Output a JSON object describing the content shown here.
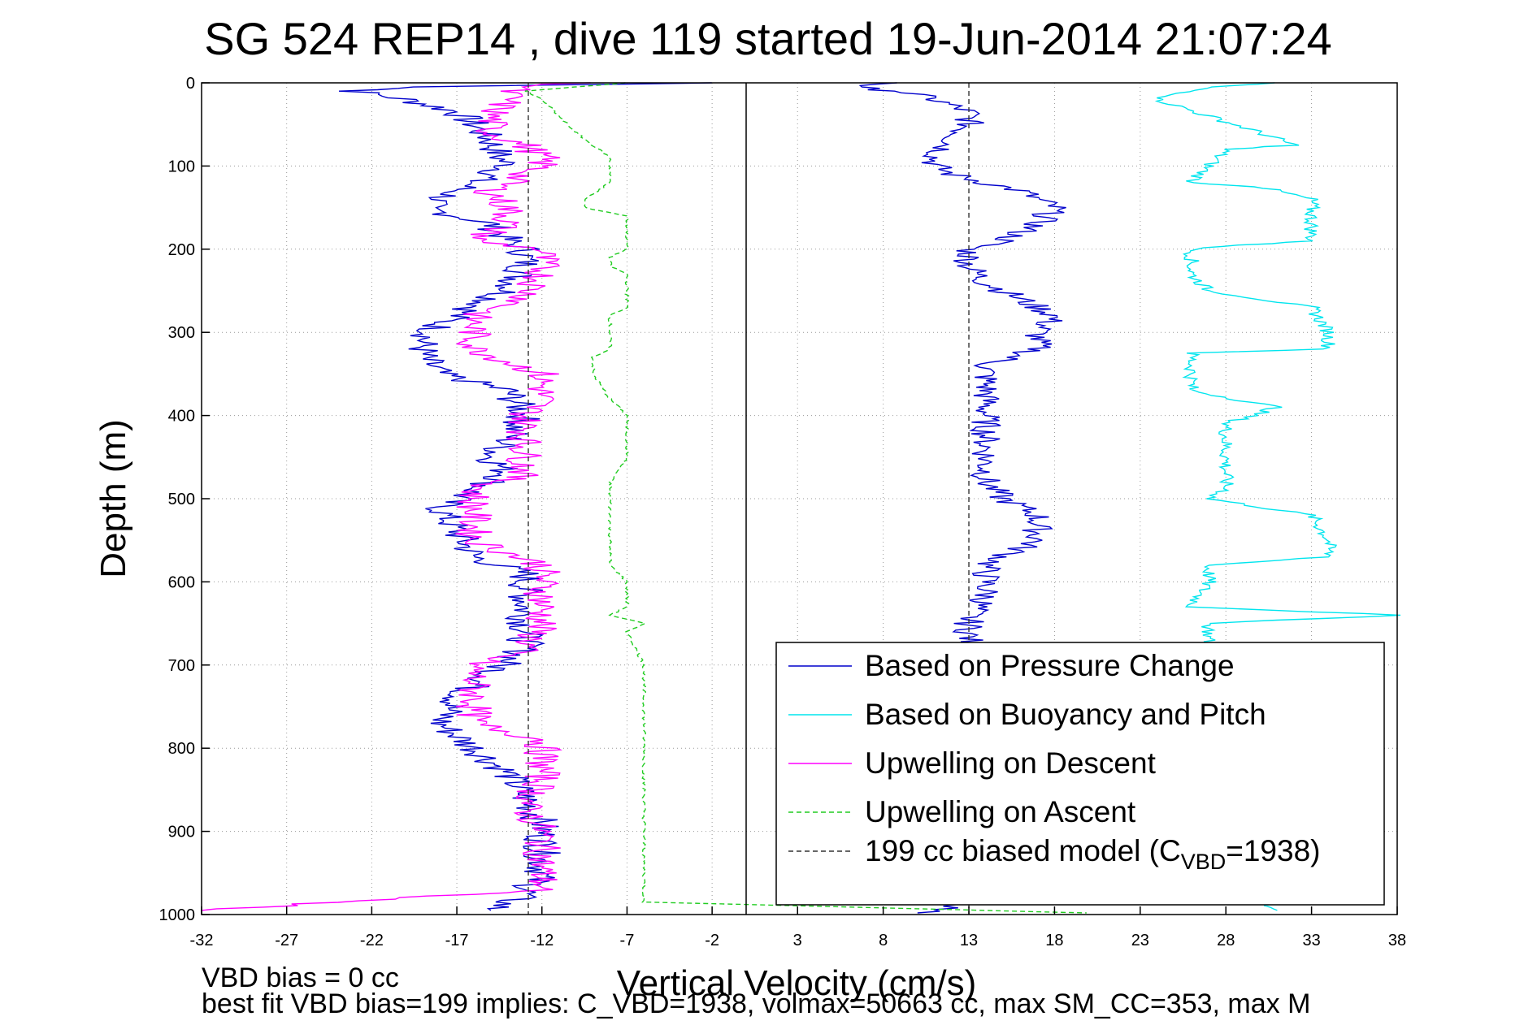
{
  "chart_data": {
    "type": "line",
    "title": "SG 524   REP14  , dive 119 started 19-Jun-2014 21:07:24",
    "xlabel": "Vertical Velocity (cm/s)",
    "ylabel": "Depth (m)",
    "left_panel": {
      "xlim": [
        -32,
        0
      ],
      "xticks": [
        -32,
        -27,
        -22,
        -17,
        -12,
        -7,
        -2
      ]
    },
    "right_panel": {
      "xlim": [
        0,
        38
      ],
      "xticks": [
        3,
        8,
        13,
        18,
        23,
        28,
        33,
        38
      ]
    },
    "ylim": [
      0,
      1000
    ],
    "yticks": [
      0,
      100,
      200,
      300,
      400,
      500,
      600,
      700,
      800,
      900,
      1000
    ],
    "y_reversed": true,
    "grid": true,
    "legend_position": "bottom-right",
    "series": [
      {
        "name": "Based on Pressure Change",
        "color": "#0000cc",
        "dash": "solid",
        "descent": {
          "depth": [
            0,
            5,
            10,
            20,
            35,
            50,
            70,
            90,
            100,
            120,
            150,
            170,
            190,
            200,
            220,
            250,
            270,
            290,
            310,
            330,
            350,
            370,
            400,
            430,
            450,
            470,
            490,
            510,
            540,
            570,
            590,
            620,
            650,
            680,
            710,
            740,
            770,
            800,
            830,
            860,
            890,
            920,
            950,
            975,
            995
          ],
          "x": [
            -2,
            -19,
            -23,
            -20,
            -17,
            -16,
            -15,
            -14.5,
            -14,
            -16,
            -19,
            -15,
            -14,
            -13,
            -13,
            -14,
            -16,
            -18,
            -19,
            -19,
            -18,
            -14,
            -13,
            -14,
            -15,
            -14,
            -16,
            -18,
            -17,
            -16,
            -13,
            -13,
            -13,
            -13,
            -15,
            -17,
            -18,
            -16,
            -14,
            -13,
            -12,
            -12,
            -12,
            -13,
            -15
          ]
        },
        "ascent": {
          "depth": [
            0,
            5,
            10,
            20,
            35,
            50,
            70,
            90,
            100,
            110,
            130,
            150,
            170,
            190,
            200,
            220,
            240,
            260,
            280,
            300,
            320,
            340,
            360,
            380,
            400,
            420,
            450,
            480,
            500,
            520,
            550,
            580,
            600,
            620,
            640,
            670,
            700,
            750,
            800,
            850,
            900,
            950,
            990,
            998
          ],
          "x": [
            9,
            6,
            9,
            11,
            13,
            13,
            12,
            11,
            11,
            12,
            16,
            18,
            17,
            15,
            13,
            13,
            14,
            16,
            18,
            17,
            17,
            14,
            14,
            14,
            14,
            14,
            14,
            14,
            15,
            17,
            17,
            14,
            14,
            14,
            13,
            13,
            13,
            13,
            13,
            13,
            13,
            13,
            12,
            10
          ]
        }
      },
      {
        "name": "Based on Buoyancy and Pitch",
        "color": "#00e5ee",
        "dash": "solid",
        "depth": [
          0,
          5,
          20,
          40,
          60,
          75,
          80,
          100,
          120,
          125,
          140,
          160,
          190,
          195,
          200,
          230,
          250,
          270,
          300,
          320,
          325,
          340,
          370,
          390,
          410,
          430,
          460,
          490,
          500,
          520,
          550,
          570,
          580,
          600,
          630,
          640,
          650,
          680,
          700,
          750,
          800,
          850,
          900,
          950,
          995
        ],
        "x": [
          31,
          27,
          24,
          27,
          30,
          32,
          28,
          27,
          26,
          30,
          33,
          33,
          33,
          29,
          26,
          26,
          27,
          33,
          34,
          34,
          26,
          26,
          26,
          31,
          28,
          28,
          28,
          28,
          27,
          33,
          34,
          34,
          27,
          27,
          26,
          38,
          27,
          27,
          27,
          27,
          27,
          27,
          27,
          27,
          31
        ]
      },
      {
        "name": "Upwelling on Descent",
        "color": "#ff00ff",
        "dash": "solid",
        "depth": [
          0,
          5,
          10,
          20,
          40,
          60,
          75,
          90,
          100,
          110,
          130,
          150,
          170,
          190,
          200,
          230,
          260,
          280,
          300,
          320,
          350,
          380,
          400,
          440,
          470,
          490,
          520,
          550,
          580,
          600,
          630,
          650,
          680,
          700,
          720,
          740,
          770,
          790,
          810,
          840,
          870,
          900,
          940,
          970,
          995
        ],
        "x": [
          -10,
          -13,
          -14,
          -14,
          -15,
          -15,
          -13,
          -12,
          -12,
          -13,
          -15,
          -14,
          -14,
          -16,
          -12,
          -12,
          -13,
          -16,
          -16,
          -16,
          -12,
          -12,
          -13,
          -13,
          -13,
          -16,
          -16,
          -16,
          -12,
          -12,
          -12,
          -12,
          -13,
          -16,
          -16,
          -16,
          -16,
          -12,
          -12,
          -12,
          -13,
          -12,
          -12,
          -12,
          -32
        ]
      },
      {
        "name": "Upwelling on Ascent",
        "color": "#22cc22",
        "dash": "dashed",
        "depth": [
          0,
          5,
          10,
          20,
          40,
          60,
          75,
          90,
          100,
          120,
          140,
          150,
          160,
          180,
          200,
          210,
          220,
          230,
          250,
          270,
          280,
          300,
          320,
          330,
          350,
          380,
          400,
          420,
          450,
          480,
          500,
          520,
          550,
          580,
          600,
          620,
          630,
          640,
          650,
          660,
          700,
          750,
          800,
          850,
          900,
          950,
          985,
          998
        ],
        "x": [
          -7,
          -10,
          -13,
          -12,
          -11,
          -10,
          -9,
          -8,
          -8,
          -8,
          -9.5,
          -9.5,
          -7,
          -7,
          -7,
          -8,
          -8,
          -7,
          -7,
          -7,
          -8,
          -8,
          -8,
          -9,
          -9,
          -8,
          -7,
          -7,
          -7,
          -8,
          -8,
          -8,
          -8,
          -8,
          -7,
          -7,
          -7,
          -8,
          -6,
          -7,
          -6,
          -6,
          -6,
          -6,
          -6,
          -6,
          -6,
          20
        ]
      },
      {
        "name": "199 cc biased model (C_VBD=1938)",
        "color": "#333333",
        "dash": "dashed",
        "left_x": -12.8,
        "right_x": 13
      }
    ],
    "legend_entries": [
      "Based on Pressure Change",
      "Based on Buoyancy and Pitch",
      "Upwelling on Descent",
      "Upwelling on Ascent",
      "199 cc biased model (C"
    ],
    "legend_sub": "VBD",
    "legend_tail": "=1938)"
  },
  "notes": {
    "line1": "VBD bias = 0 cc",
    "line2": "best fit VBD bias=199 implies: C_VBD=1938, volmax=50663 cc, max SM_CC=353, max M"
  }
}
